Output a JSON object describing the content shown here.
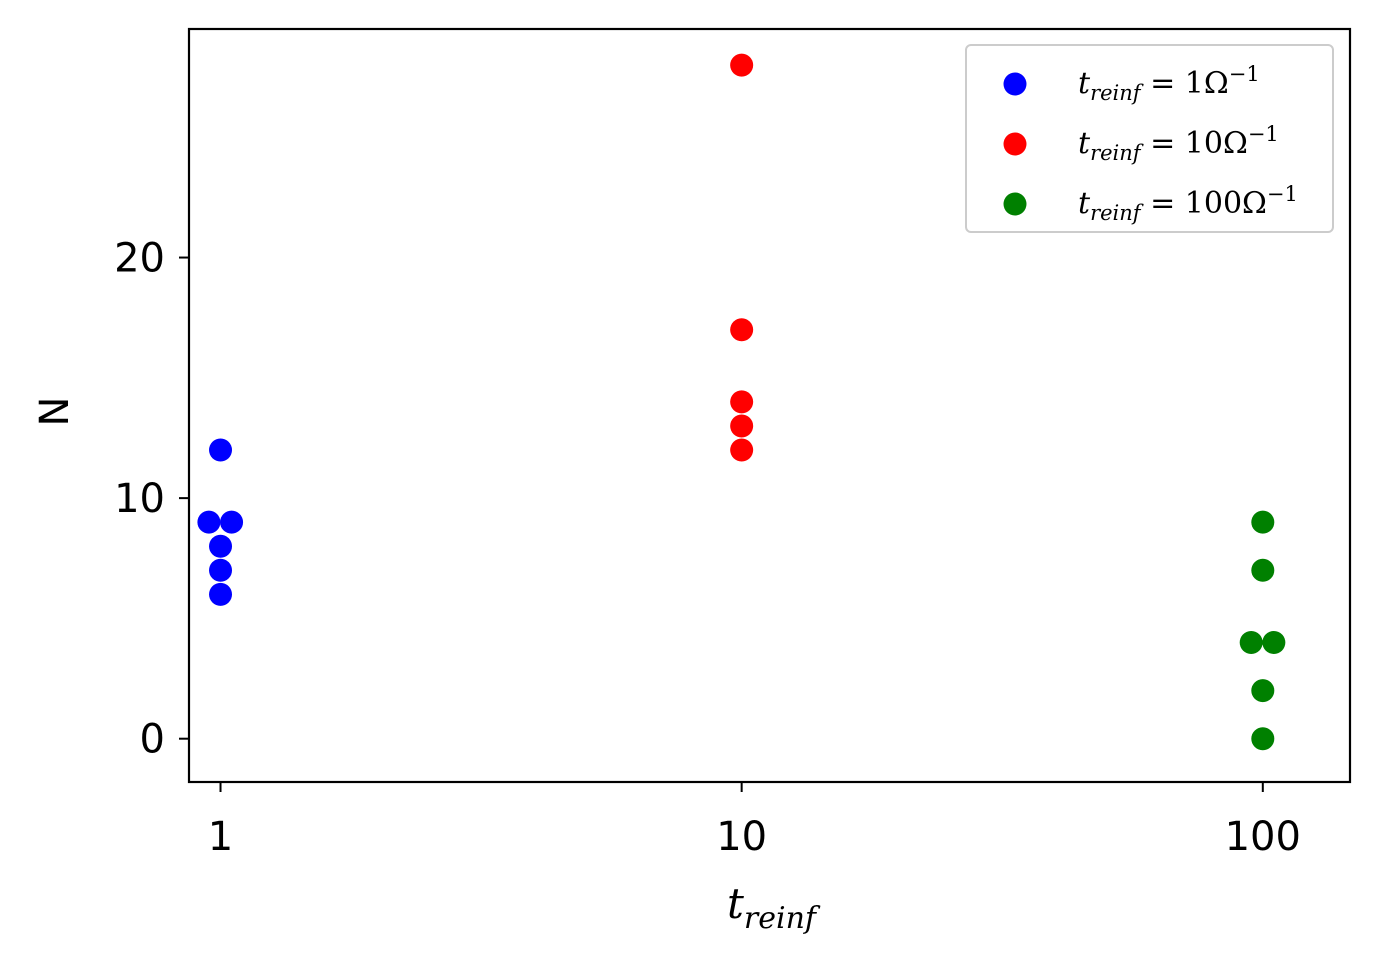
{
  "chart_data": {
    "type": "scatter",
    "x_scale": "log",
    "xlim": [
      0.87,
      147
    ],
    "ylim": [
      -1.8,
      29.5
    ],
    "xticks": [
      {
        "value": 1,
        "label": "1"
      },
      {
        "value": 10,
        "label": "10"
      },
      {
        "value": 100,
        "label": "100"
      }
    ],
    "yticks": [
      {
        "value": 0,
        "label": "0"
      },
      {
        "value": 10,
        "label": "10"
      },
      {
        "value": 20,
        "label": "20"
      }
    ],
    "xlabel": {
      "main": "t",
      "sub": "reinf"
    },
    "ylabel": "N",
    "legend_position": "top-right",
    "grid": false,
    "series": [
      {
        "name": {
          "t": "t",
          "sub": "reinf",
          "eq": " = ",
          "num": "1",
          "unit": "Ω",
          "sup": "−1"
        },
        "color": "#0000ff",
        "points": [
          {
            "x": 1,
            "y": 12
          },
          {
            "x": 0.95,
            "y": 9
          },
          {
            "x": 1.05,
            "y": 9
          },
          {
            "x": 1,
            "y": 8
          },
          {
            "x": 1,
            "y": 7
          },
          {
            "x": 1,
            "y": 6
          }
        ]
      },
      {
        "name": {
          "t": "t",
          "sub": "reinf",
          "eq": " = ",
          "num": "10",
          "unit": "Ω",
          "sup": "−1"
        },
        "color": "#ff0000",
        "points": [
          {
            "x": 10,
            "y": 28
          },
          {
            "x": 10,
            "y": 17
          },
          {
            "x": 10,
            "y": 14
          },
          {
            "x": 10,
            "y": 13
          },
          {
            "x": 10,
            "y": 12
          }
        ]
      },
      {
        "name": {
          "t": "t",
          "sub": "reinf",
          "eq": " = ",
          "num": "100",
          "unit": "Ω",
          "sup": "−1"
        },
        "color": "#008000",
        "points": [
          {
            "x": 100,
            "y": 9
          },
          {
            "x": 100,
            "y": 7
          },
          {
            "x": 95,
            "y": 4
          },
          {
            "x": 105,
            "y": 4
          },
          {
            "x": 100,
            "y": 2
          },
          {
            "x": 100,
            "y": 0
          }
        ]
      }
    ]
  }
}
